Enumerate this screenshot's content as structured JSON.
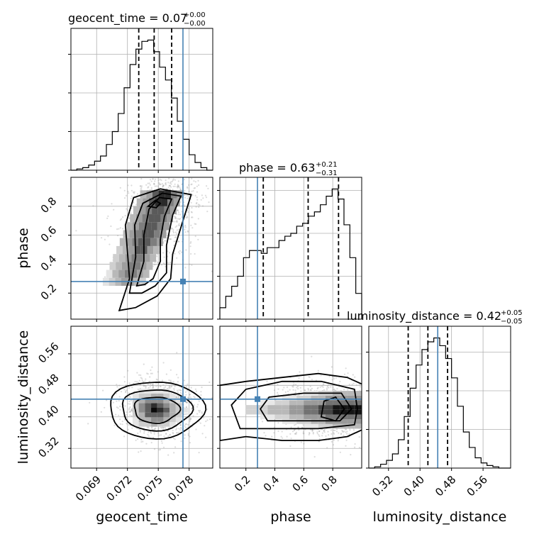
{
  "chart_data": {
    "type": "corner",
    "parameters": [
      {
        "key": "geocent_time",
        "label": "geocent_time",
        "range": [
          0.0665,
          0.0803
        ],
        "ticks": [
          0.069,
          0.072,
          0.075,
          0.078
        ],
        "tick_labels": [
          "0.069",
          "0.072",
          "0.075",
          "0.078"
        ],
        "truth": 0.0774,
        "quantiles": [
          0.0731,
          0.0746,
          0.0763
        ]
      },
      {
        "key": "phase",
        "label": "phase",
        "range": [
          0.02,
          1.0
        ],
        "ticks": [
          0.2,
          0.4,
          0.6,
          0.8
        ],
        "tick_labels": [
          "0.2",
          "0.4",
          "0.6",
          "0.8"
        ],
        "truth": 0.28,
        "quantiles": [
          0.32,
          0.63,
          0.84
        ]
      },
      {
        "key": "luminosity_distance",
        "label": "luminosity_distance",
        "range": [
          0.27,
          0.63
        ],
        "ticks": [
          0.32,
          0.4,
          0.48,
          0.56
        ],
        "tick_labels": [
          "0.32",
          "0.40",
          "0.48",
          "0.56"
        ],
        "truth": 0.445,
        "quantiles": [
          0.37,
          0.42,
          0.47
        ]
      }
    ],
    "titles": [
      {
        "main": "geocent_time = 0.07",
        "sup": "+0.00",
        "sub": "−0.00"
      },
      {
        "main": "phase = 0.63",
        "sup": "+0.21",
        "sub": "−0.31"
      },
      {
        "main": "luminosity_distance = 0.42",
        "sup": "+0.05",
        "sub": "−0.05"
      }
    ],
    "histograms": {
      "geocent_time": [
        0.0,
        0.01,
        0.02,
        0.04,
        0.07,
        0.11,
        0.2,
        0.3,
        0.44,
        0.64,
        0.82,
        0.94,
        1.0,
        1.01,
        0.92,
        0.8,
        0.7,
        0.56,
        0.38,
        0.24,
        0.12,
        0.06,
        0.02,
        0.0
      ],
      "phase": [
        0.08,
        0.16,
        0.23,
        0.3,
        0.43,
        0.48,
        0.48,
        0.46,
        0.5,
        0.5,
        0.55,
        0.58,
        0.6,
        0.65,
        0.67,
        0.72,
        0.75,
        0.8,
        0.86,
        0.91,
        0.84,
        0.66,
        0.43,
        0.18
      ],
      "luminosity_distance": [
        0.0,
        0.01,
        0.03,
        0.06,
        0.11,
        0.22,
        0.4,
        0.62,
        0.8,
        0.92,
        0.98,
        1.01,
        0.95,
        0.85,
        0.7,
        0.48,
        0.28,
        0.16,
        0.08,
        0.04,
        0.02,
        0.01,
        0.0,
        0.0
      ]
    },
    "grid": true,
    "truth_color": "#4682b4",
    "hist_color": "#000000"
  }
}
